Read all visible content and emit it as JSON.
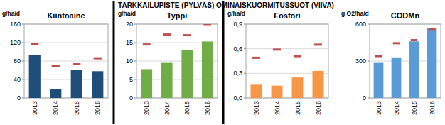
{
  "title": "TARKKAILUPISTE (PYLVÄS) OMINAISKUORMITUSSUOT (VIIVA)",
  "chart_data": [
    {
      "type": "bar",
      "title": "Kiintoaine",
      "y_label": "g/ha/d",
      "categories": [
        "2013",
        "2014",
        "2015",
        "2016"
      ],
      "series": [
        {
          "type": "bar",
          "color": "#1f4e79",
          "values": [
            93,
            20,
            60,
            58
          ]
        },
        {
          "type": "scatter",
          "marker": "dash",
          "color": "#c0504d",
          "values": [
            117,
            70,
            73,
            86
          ]
        }
      ],
      "ylim": [
        0,
        160
      ],
      "yticks": [
        0,
        40,
        80,
        120,
        160
      ],
      "grid": true
    },
    {
      "type": "bar",
      "title": "Typpi",
      "y_label": "g/ha/d",
      "categories": [
        "2013",
        "2014",
        "2015",
        "2016"
      ],
      "series": [
        {
          "type": "bar",
          "color": "#70ad47",
          "values": [
            7.8,
            9.5,
            13,
            15.3
          ]
        },
        {
          "type": "scatter",
          "marker": "dash",
          "color": "#c0504d",
          "values": [
            14.5,
            17.2,
            17,
            20
          ]
        }
      ],
      "ylim": [
        0,
        20
      ],
      "yticks": [
        0,
        5,
        10,
        15,
        20
      ],
      "grid": true
    },
    {
      "type": "bar",
      "title": "Fosfori",
      "y_label": "g/ha/d",
      "categories": [
        "2013",
        "2014",
        "2015",
        "2016"
      ],
      "series": [
        {
          "type": "bar",
          "color": "#f79646",
          "values": [
            0.17,
            0.15,
            0.25,
            0.33
          ]
        },
        {
          "type": "scatter",
          "marker": "dash",
          "color": "#c0504d",
          "values": [
            0.49,
            0.59,
            0.51,
            0.65
          ]
        }
      ],
      "ylim": [
        0,
        0.9
      ],
      "yticks": [
        {
          "value": 0,
          "label": "0,0"
        },
        {
          "value": 0.3,
          "label": "0,3"
        },
        {
          "value": 0.6,
          "label": "0,6"
        },
        {
          "value": 0.9,
          "label": "0,9"
        }
      ],
      "grid": true
    },
    {
      "type": "bar",
      "title": "CODMn",
      "y_label": "g O2/ha/d",
      "categories": [
        "2013",
        "2014",
        "2015",
        "2016"
      ],
      "series": [
        {
          "type": "bar",
          "color": "#5b9bd5",
          "values": [
            285,
            330,
            460,
            570
          ]
        },
        {
          "type": "scatter",
          "marker": "dash",
          "color": "#c0504d",
          "values": [
            340,
            445,
            470,
            560
          ]
        }
      ],
      "ylim": [
        0,
        600
      ],
      "yticks": [
        0,
        300,
        600
      ],
      "grid": true
    }
  ]
}
